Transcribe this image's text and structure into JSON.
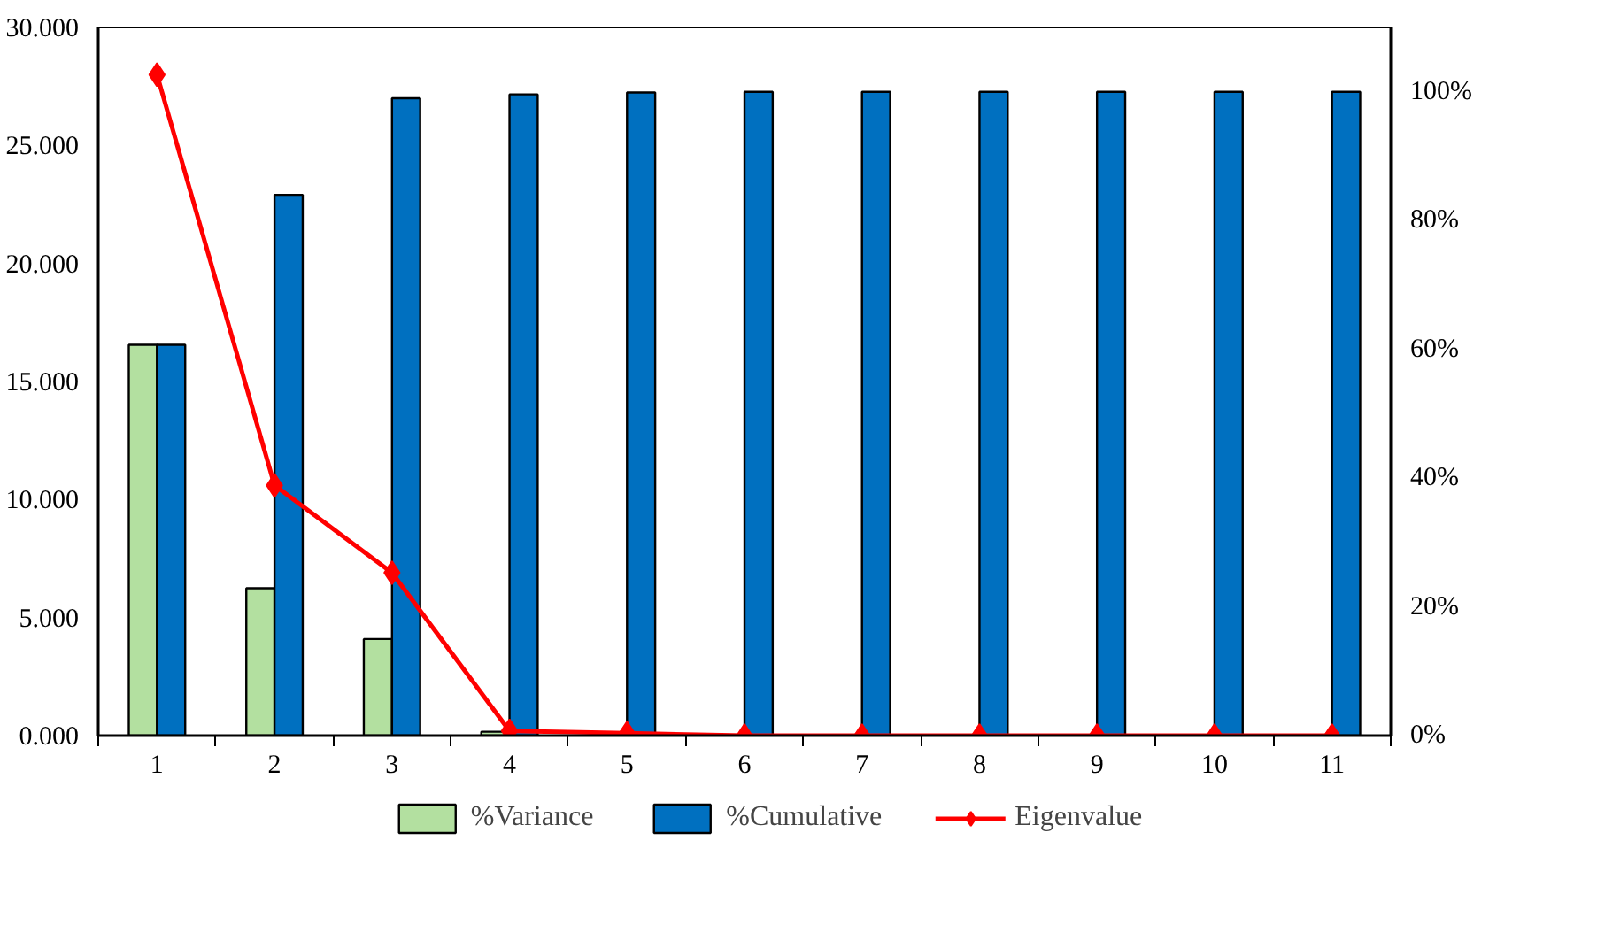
{
  "chart_data": {
    "type": "bar",
    "categories": [
      "1",
      "2",
      "3",
      "4",
      "5",
      "6",
      "7",
      "8",
      "9",
      "10",
      "11"
    ],
    "series": [
      {
        "name": "%Variance",
        "color": "#b3e0a0",
        "axis": "y2",
        "values": [
          60.7,
          22.9,
          15.0,
          0.6,
          0.3,
          0.1,
          0.0,
          0.0,
          0.0,
          0.0,
          0.0
        ]
      },
      {
        "name": "%Cumulative",
        "color": "#0070c0",
        "axis": "y2",
        "values": [
          60.7,
          84.0,
          99.0,
          99.6,
          99.9,
          100.0,
          100.0,
          100.0,
          100.0,
          100.0,
          100.0
        ]
      },
      {
        "name": "Eigenvalue",
        "type": "line",
        "color": "#ff0000",
        "marker": "diamond",
        "values": [
          28.0,
          10.6,
          6.9,
          0.2,
          0.1,
          0.0,
          0.0,
          0.0,
          0.0,
          0.0,
          0.0
        ]
      }
    ],
    "ylim": [
      0,
      30
    ],
    "yticks": [
      {
        "value": 0,
        "label": "0.000"
      },
      {
        "value": 5,
        "label": "5.000"
      },
      {
        "value": 10,
        "label": "10.000"
      },
      {
        "value": 15,
        "label": "15.000"
      },
      {
        "value": 20,
        "label": "20.000"
      },
      {
        "value": 25,
        "label": "25.000"
      },
      {
        "value": 30,
        "label": "30.000"
      }
    ],
    "y2lim": [
      0,
      110
    ],
    "y2ticks": [
      {
        "value": 0,
        "label": "0%"
      },
      {
        "value": 20,
        "label": "20%"
      },
      {
        "value": 40,
        "label": "40%"
      },
      {
        "value": 60,
        "label": "60%"
      },
      {
        "value": 80,
        "label": "80%"
      },
      {
        "value": 100,
        "label": "100%"
      }
    ],
    "grid": false,
    "legend": "bottom"
  }
}
